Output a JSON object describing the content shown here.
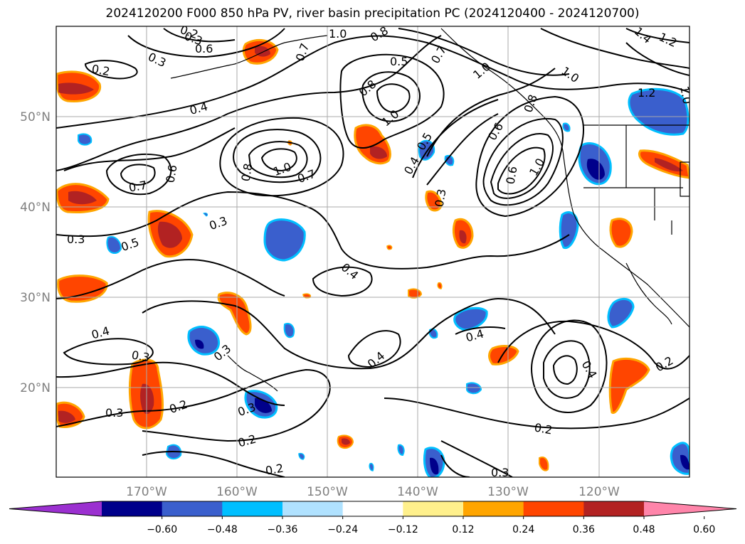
{
  "title": "2024120200 F000 850 hPa PV, river basin precipitation PC (2024120400 - 2024120700)",
  "map": {
    "lon_range": [
      -180,
      -110
    ],
    "lat_range": [
      10,
      60
    ],
    "lon_ticks": [
      "170°W",
      "160°W",
      "150°W",
      "140°W",
      "130°W",
      "120°W"
    ],
    "lat_ticks": [
      "20°N",
      "30°N",
      "40°N",
      "50°N"
    ],
    "gridlines": true,
    "contour_field": "850 hPa PV",
    "contour_labels": [
      "0.2",
      "0.3",
      "0.6",
      "0.7",
      "1.0",
      "0.8",
      "0.5",
      "0.7",
      "1.0",
      "1.4",
      "1.2",
      "0.2",
      "0.3",
      "1.0",
      "0.4",
      "0.8",
      "1.0",
      "1.2",
      "1.0",
      "0.6",
      "0.8",
      "1.0",
      "0.7",
      "0.7",
      "0.6",
      "0.8",
      "0.5",
      "0.4",
      "0.3",
      "0.6",
      "1.0",
      "0.3",
      "0.5",
      "0.3",
      "0.4",
      "0.4",
      "0.3",
      "0.3",
      "0.4",
      "0.4",
      "0.3",
      "0.2",
      "0.3",
      "0.2",
      "0.2",
      "0.2",
      "0.4",
      "0.2",
      "0.3"
    ]
  },
  "colorbar": {
    "ticks": [
      "−0.60",
      "−0.48",
      "−0.36",
      "−0.24",
      "−0.12",
      "0.12",
      "0.24",
      "0.36",
      "0.48",
      "0.60"
    ],
    "colors": [
      "#9b30d0",
      "#00008b",
      "#3a5fcd",
      "#00bfff",
      "#b0e2ff",
      "#ffffff",
      "#fff08c",
      "#ffa500",
      "#ff4500",
      "#b22222",
      "#ff85aa"
    ],
    "extend": "both"
  }
}
